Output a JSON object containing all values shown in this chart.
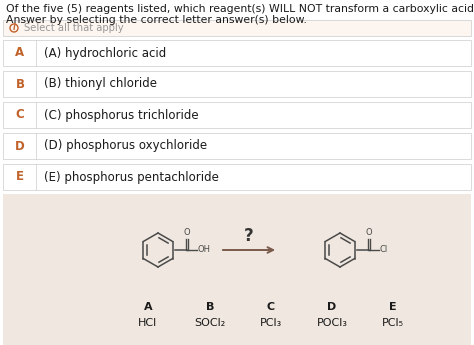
{
  "title_line1": "Of the five (5) reagents listed, which reagent(s) WILL NOT transform a carboxylic acid into an acyl chloride?",
  "title_line2": "Answer by selecting the correct letter answer(s) below.",
  "info_text": "Select all that apply",
  "options": [
    {
      "letter": "A",
      "text": "(A) hydrochloric acid"
    },
    {
      "letter": "B",
      "text": "(B) thionyl chloride"
    },
    {
      "letter": "C",
      "text": "(C) phosphorus trichloride"
    },
    {
      "letter": "D",
      "text": "(D) phosphorus oxychloride"
    },
    {
      "letter": "E",
      "text": "(E) phosphorus pentachloride"
    }
  ],
  "letter_color": "#c0622a",
  "bg_color": "#ffffff",
  "info_bg": "#fdf5f0",
  "bottom_bg": "#f0e8e0",
  "option_bg": "#ffffff",
  "border_color": "#cccccc",
  "title_color": "#1a1a1a",
  "option_text_color": "#1a1a1a",
  "bottom_labels": [
    "A",
    "B",
    "C",
    "D",
    "E"
  ],
  "bottom_formulas": [
    "HCl",
    "SOCl₂",
    "PCl₃",
    "POCl₃",
    "PCl₅"
  ],
  "arrow_text": "?",
  "font_size_title": 7.8,
  "font_size_option": 8.5,
  "font_size_info": 7.2,
  "font_size_bottom": 8.0,
  "struct_color": "#4a4a4a",
  "arrow_color": "#7a5a4a"
}
